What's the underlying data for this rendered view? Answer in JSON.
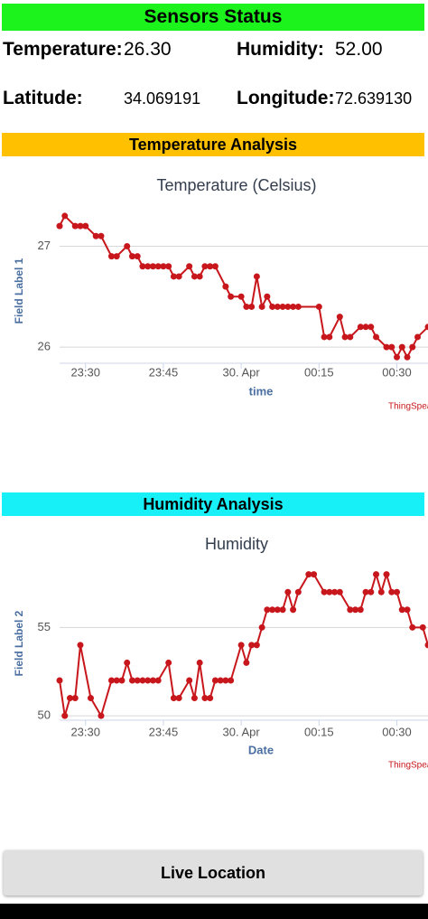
{
  "status": {
    "title": "Sensors Status",
    "temperature_label": "Temperature:",
    "temperature": "26.30",
    "humidity_label": "Humidity:",
    "humidity": "52.00",
    "latitude_label": "Latitude:",
    "latitude": "34.069191",
    "longitude_label": "Longitude:",
    "longitude": "72.639130"
  },
  "temperature_section": {
    "title": "Temperature Analysis"
  },
  "humidity_section": {
    "title": "Humidity Analysis"
  },
  "chart_data": [
    {
      "type": "line",
      "title": "Temperature (Celsius)",
      "x_label": "time",
      "y_label": "Field Label 1",
      "credit": "ThingSpeak",
      "color": "#c8171c",
      "grid": true,
      "x": [
        "23:25",
        "23:26",
        "23:28",
        "23:29",
        "23:30",
        "23:32",
        "23:33",
        "23:35",
        "23:36",
        "23:38",
        "23:39",
        "23:40",
        "23:41",
        "23:42",
        "23:43",
        "23:44",
        "23:45",
        "23:46",
        "23:47",
        "23:48",
        "23:50",
        "23:51",
        "23:52",
        "23:53",
        "23:54",
        "23:55",
        "23:57",
        "23:58",
        "00:00",
        "00:01",
        "00:02",
        "00:03",
        "00:04",
        "00:05",
        "00:06",
        "00:07",
        "00:08",
        "00:09",
        "00:10",
        "00:11",
        "00:15",
        "00:16",
        "00:17",
        "00:19",
        "00:20",
        "00:21",
        "00:23",
        "00:24",
        "00:25",
        "00:26",
        "00:28",
        "00:29",
        "00:30",
        "00:31",
        "00:32",
        "00:33",
        "00:34",
        "00:36"
      ],
      "values": [
        27.2,
        27.3,
        27.2,
        27.2,
        27.2,
        27.1,
        27.1,
        26.9,
        26.9,
        27.0,
        26.9,
        26.9,
        26.8,
        26.8,
        26.8,
        26.8,
        26.8,
        26.8,
        26.7,
        26.7,
        26.8,
        26.7,
        26.7,
        26.8,
        26.8,
        26.8,
        26.6,
        26.5,
        26.5,
        26.4,
        26.4,
        26.7,
        26.4,
        26.5,
        26.4,
        26.4,
        26.4,
        26.4,
        26.4,
        26.4,
        26.4,
        26.1,
        26.1,
        26.3,
        26.1,
        26.1,
        26.2,
        26.2,
        26.2,
        26.1,
        26.0,
        26.0,
        25.9,
        26.0,
        25.9,
        26.0,
        26.1,
        26.2
      ],
      "xlim": [
        "23:25",
        "00:36"
      ],
      "xticks": [
        "23:30",
        "23:45",
        {
          "value": "00:00",
          "label": "30. Apr"
        },
        "00:15",
        "00:30"
      ],
      "ylim": [
        25.84,
        27.38
      ],
      "yticks": [
        26,
        27
      ]
    },
    {
      "type": "line",
      "title": "Humidity",
      "x_label": "Date",
      "y_label": "Field Label 2",
      "credit": "ThingSpeak",
      "color": "#c8171c",
      "grid": true,
      "x": [
        "23:25",
        "23:26",
        "23:27",
        "23:28",
        "23:29",
        "23:31",
        "23:33",
        "23:35",
        "23:36",
        "23:37",
        "23:38",
        "23:39",
        "23:40",
        "23:41",
        "23:42",
        "23:43",
        "23:44",
        "23:46",
        "23:47",
        "23:48",
        "23:50",
        "23:51",
        "23:52",
        "23:53",
        "23:54",
        "23:55",
        "23:56",
        "23:57",
        "23:58",
        "00:00",
        "00:01",
        "00:02",
        "00:03",
        "00:04",
        "00:05",
        "00:06",
        "00:07",
        "00:08",
        "00:09",
        "00:10",
        "00:11",
        "00:13",
        "00:14",
        "00:16",
        "00:17",
        "00:18",
        "00:19",
        "00:21",
        "00:22",
        "00:23",
        "00:24",
        "00:25",
        "00:26",
        "00:27",
        "00:28",
        "00:29",
        "00:30",
        "00:31",
        "00:32",
        "00:33",
        "00:35",
        "00:36"
      ],
      "values": [
        52,
        50,
        51,
        51,
        54,
        51,
        50,
        52,
        52,
        52,
        53,
        52,
        52,
        52,
        52,
        52,
        52,
        53,
        51,
        51,
        52,
        51,
        53,
        51,
        51,
        52,
        52,
        52,
        52,
        54,
        53,
        54,
        54,
        55,
        56,
        56,
        56,
        56,
        57,
        56,
        57,
        58,
        58,
        57,
        57,
        57,
        57,
        56,
        56,
        56,
        57,
        57,
        58,
        57,
        58,
        57,
        57,
        56,
        56,
        55,
        55,
        54
      ],
      "xlim": [
        "23:25",
        "00:36"
      ],
      "xticks": [
        "23:30",
        "23:45",
        {
          "value": "00:00",
          "label": "30. Apr"
        },
        "00:15",
        "00:30"
      ],
      "ylim": [
        49.75,
        58.8
      ],
      "yticks": [
        50,
        55
      ]
    }
  ],
  "button": {
    "label": "Live Location"
  }
}
